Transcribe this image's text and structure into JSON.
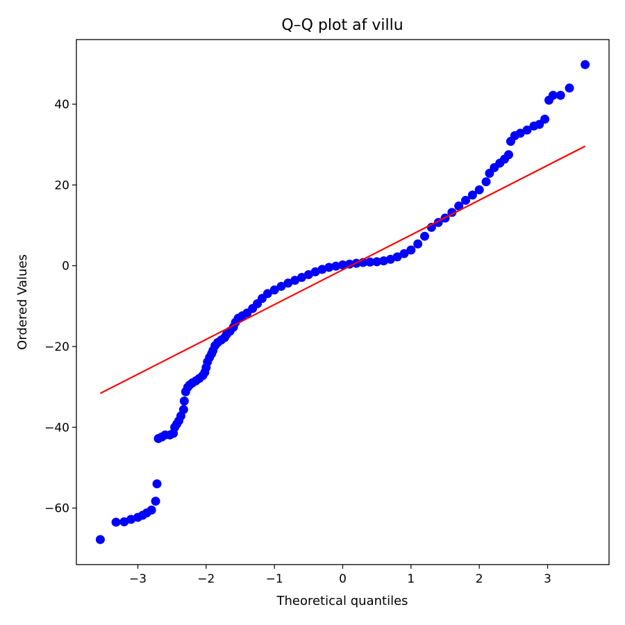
{
  "chart_data": {
    "type": "scatter",
    "title": "Q–Q plot af villu",
    "xlabel": "Theoretical quantiles",
    "ylabel": "Ordered Values",
    "xlim": [
      -3.9,
      3.9
    ],
    "ylim": [
      -74,
      56
    ],
    "xticks": [
      -3,
      -2,
      -1,
      0,
      1,
      2,
      3
    ],
    "xtick_labels": [
      "−3",
      "−2",
      "−1",
      "0",
      "1",
      "2",
      "3"
    ],
    "yticks": [
      -60,
      -40,
      -20,
      0,
      20,
      40
    ],
    "ytick_labels": [
      "−60",
      "−40",
      "−20",
      "0",
      "20",
      "40"
    ],
    "grid": false,
    "legend": "none",
    "point_color": "#0000ff",
    "line_color": "#ff0000",
    "fit_line": {
      "x": [
        -3.55,
        3.55
      ],
      "y": [
        -31.6,
        29.6
      ]
    },
    "points": [
      [
        -3.55,
        -67.8
      ],
      [
        -3.32,
        -63.5
      ],
      [
        -3.2,
        -63.4
      ],
      [
        -3.1,
        -62.8
      ],
      [
        -3.0,
        -62.3
      ],
      [
        -2.93,
        -61.8
      ],
      [
        -2.87,
        -61.2
      ],
      [
        -2.8,
        -60.5
      ],
      [
        -2.74,
        -58.3
      ],
      [
        -2.72,
        -54.0
      ],
      [
        -2.7,
        -42.8
      ],
      [
        -2.65,
        -42.4
      ],
      [
        -2.6,
        -41.9
      ],
      [
        -2.53,
        -41.9
      ],
      [
        -2.48,
        -41.5
      ],
      [
        -2.46,
        -40.0
      ],
      [
        -2.43,
        -39.2
      ],
      [
        -2.4,
        -38.4
      ],
      [
        -2.37,
        -37.2
      ],
      [
        -2.33,
        -35.6
      ],
      [
        -2.32,
        -33.5
      ],
      [
        -2.3,
        -31.2
      ],
      [
        -2.27,
        -30.1
      ],
      [
        -2.24,
        -29.5
      ],
      [
        -2.2,
        -29.0
      ],
      [
        -2.15,
        -28.5
      ],
      [
        -2.1,
        -27.9
      ],
      [
        -2.05,
        -27.2
      ],
      [
        -2.02,
        -26.4
      ],
      [
        -2.0,
        -25.2
      ],
      [
        -1.98,
        -23.8
      ],
      [
        -1.95,
        -22.7
      ],
      [
        -1.92,
        -21.8
      ],
      [
        -1.9,
        -21.0
      ],
      [
        -1.87,
        -19.8
      ],
      [
        -1.83,
        -19.0
      ],
      [
        -1.78,
        -18.4
      ],
      [
        -1.73,
        -17.8
      ],
      [
        -1.7,
        -17.0
      ],
      [
        -1.65,
        -16.2
      ],
      [
        -1.6,
        -15.2
      ],
      [
        -1.57,
        -14.0
      ],
      [
        -1.53,
        -13.0
      ],
      [
        -1.47,
        -12.4
      ],
      [
        -1.4,
        -11.7
      ],
      [
        -1.32,
        -10.6
      ],
      [
        -1.25,
        -9.4
      ],
      [
        -1.18,
        -8.1
      ],
      [
        -1.1,
        -6.9
      ],
      [
        -1.0,
        -6.0
      ],
      [
        -0.9,
        -5.1
      ],
      [
        -0.8,
        -4.3
      ],
      [
        -0.7,
        -3.6
      ],
      [
        -0.6,
        -2.9
      ],
      [
        -0.5,
        -2.2
      ],
      [
        -0.4,
        -1.5
      ],
      [
        -0.3,
        -0.9
      ],
      [
        -0.2,
        -0.4
      ],
      [
        -0.1,
        -0.1
      ],
      [
        0.0,
        0.2
      ],
      [
        0.1,
        0.4
      ],
      [
        0.2,
        0.6
      ],
      [
        0.3,
        0.8
      ],
      [
        0.4,
        0.9
      ],
      [
        0.5,
        1.0
      ],
      [
        0.6,
        1.2
      ],
      [
        0.7,
        1.6
      ],
      [
        0.8,
        2.2
      ],
      [
        0.9,
        3.0
      ],
      [
        1.0,
        3.9
      ],
      [
        1.1,
        5.4
      ],
      [
        1.2,
        7.3
      ],
      [
        1.3,
        9.5
      ],
      [
        1.4,
        10.7
      ],
      [
        1.5,
        11.8
      ],
      [
        1.6,
        13.2
      ],
      [
        1.7,
        14.8
      ],
      [
        1.8,
        16.2
      ],
      [
        1.9,
        17.5
      ],
      [
        2.0,
        18.8
      ],
      [
        2.1,
        20.8
      ],
      [
        2.15,
        22.9
      ],
      [
        2.22,
        24.3
      ],
      [
        2.3,
        25.4
      ],
      [
        2.37,
        26.4
      ],
      [
        2.43,
        27.5
      ],
      [
        2.46,
        30.8
      ],
      [
        2.52,
        32.2
      ],
      [
        2.6,
        32.8
      ],
      [
        2.7,
        33.6
      ],
      [
        2.8,
        34.6
      ],
      [
        2.88,
        35.0
      ],
      [
        2.96,
        36.3
      ],
      [
        3.02,
        41.0
      ],
      [
        3.08,
        42.2
      ],
      [
        3.19,
        42.2
      ],
      [
        3.32,
        44.0
      ],
      [
        3.55,
        49.8
      ]
    ]
  }
}
